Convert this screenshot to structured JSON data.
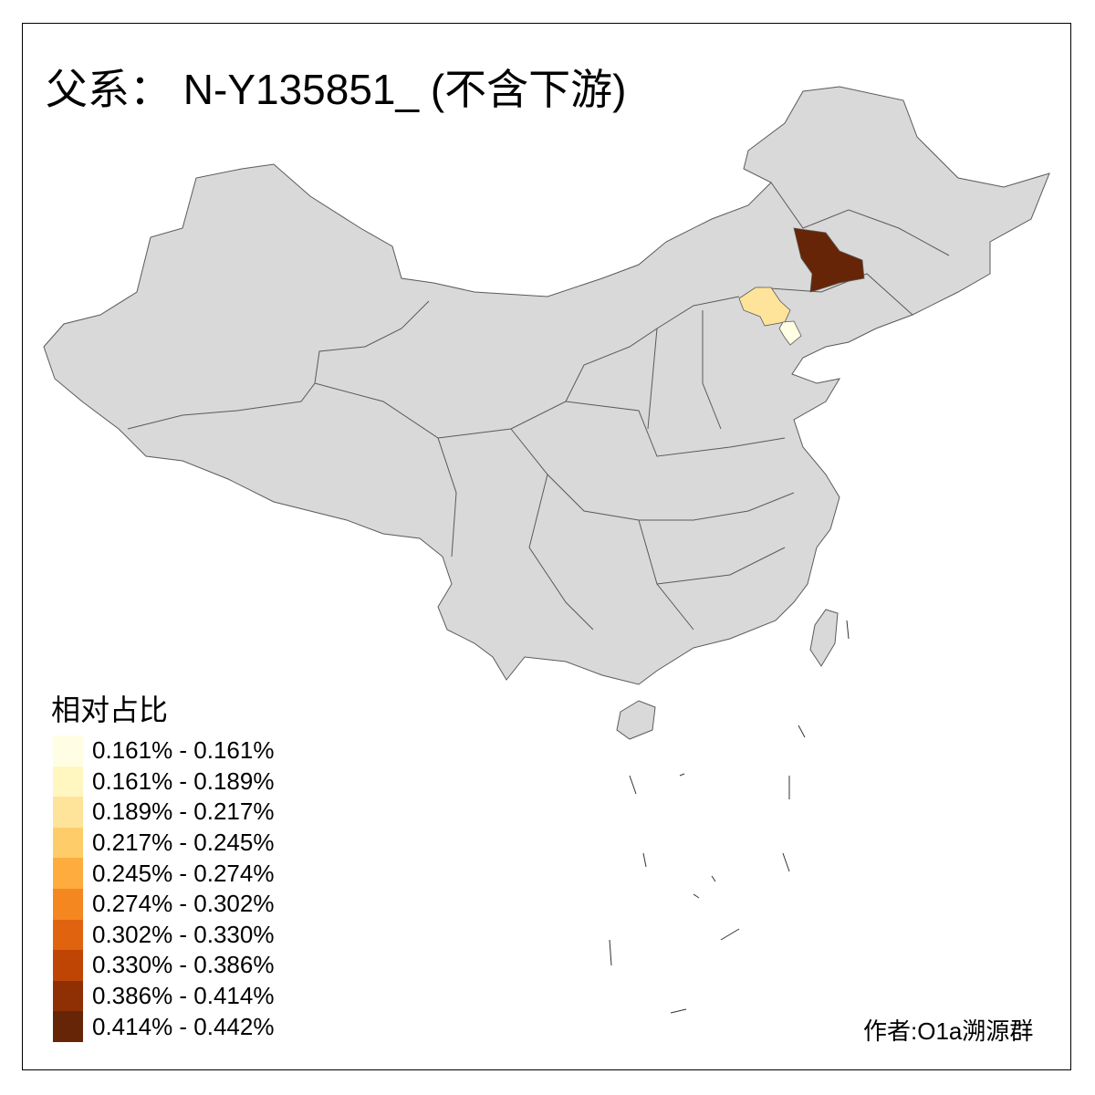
{
  "title": "父系： N-Y135851_ (不含下游)",
  "credit": "作者:O1a溯源群",
  "colors": {
    "base_fill": "#D9D9D9",
    "border": "#5A5A5A",
    "sea": "#FFFFFF"
  },
  "legend": {
    "title": "相对占比",
    "classes": [
      {
        "label": "0.161% - 0.161%",
        "color": "#FFFDE4"
      },
      {
        "label": "0.161% - 0.189%",
        "color": "#FFF6C0"
      },
      {
        "label": "0.189% - 0.217%",
        "color": "#FEE49A"
      },
      {
        "label": "0.217% - 0.245%",
        "color": "#FECD6A"
      },
      {
        "label": "0.245% - 0.274%",
        "color": "#FDAC3D"
      },
      {
        "label": "0.274% - 0.302%",
        "color": "#F4871F"
      },
      {
        "label": "0.302% - 0.330%",
        "color": "#E0630F"
      },
      {
        "label": "0.330% - 0.386%",
        "color": "#BF4504"
      },
      {
        "label": "0.386% - 0.414%",
        "color": "#8F3004"
      },
      {
        "label": "0.414% - 0.442%",
        "color": "#662506"
      }
    ]
  },
  "chart_data": {
    "type": "choropleth",
    "highlighted_regions": [
      {
        "class": "0.414% - 0.442%",
        "color": "#662506"
      },
      {
        "class": "0.189% - 0.217%",
        "color": "#FEE49A"
      },
      {
        "class": "0.161% - 0.161%",
        "color": "#FFFDE4"
      }
    ]
  }
}
